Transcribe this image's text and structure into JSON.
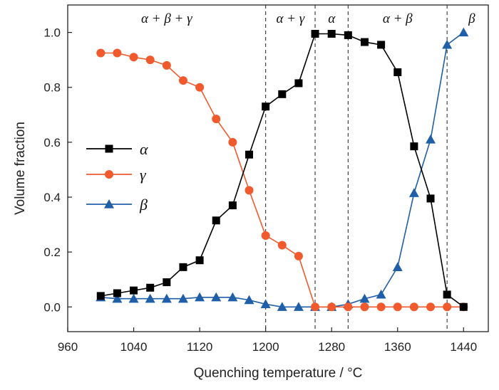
{
  "chart_data": {
    "type": "line",
    "title": "",
    "xlabel": "Quenching temperature / °C",
    "ylabel": "Volume fraction",
    "xlim": [
      960,
      1470
    ],
    "ylim": [
      -0.09,
      1.1
    ],
    "xticks": [
      960,
      1040,
      1120,
      1200,
      1280,
      1360,
      1440
    ],
    "yticks": [
      0.0,
      0.2,
      0.4,
      0.6,
      0.8,
      1.0
    ],
    "xtick_labels": [
      "960",
      "1040",
      "1120",
      "1200",
      "1280",
      "1360",
      "1440"
    ],
    "ytick_labels": [
      "0.0",
      "0.2",
      "0.4",
      "0.6",
      "0.8",
      "1.0"
    ],
    "grid": false,
    "legend_position": "center-left",
    "phase_boundaries": [
      1200,
      1260,
      1300,
      1420
    ],
    "phase_labels": [
      {
        "text": "α + β + γ",
        "x": 1080
      },
      {
        "text": "α + γ",
        "x": 1230
      },
      {
        "text": "α",
        "x": 1280
      },
      {
        "text": "α + β",
        "x": 1360
      },
      {
        "text": "β",
        "x": 1450
      }
    ],
    "x": [
      1000,
      1020,
      1040,
      1060,
      1080,
      1100,
      1120,
      1140,
      1160,
      1180,
      1200,
      1220,
      1240,
      1260,
      1280,
      1300,
      1320,
      1340,
      1360,
      1380,
      1400,
      1420,
      1440
    ],
    "series": [
      {
        "name": "α",
        "color": "#000000",
        "marker": "square",
        "values": [
          0.04,
          0.05,
          0.06,
          0.07,
          0.09,
          0.145,
          0.17,
          0.315,
          0.37,
          0.555,
          0.73,
          0.775,
          0.815,
          0.995,
          0.995,
          0.99,
          0.965,
          0.955,
          0.855,
          0.585,
          0.395,
          0.045,
          0.0
        ]
      },
      {
        "name": "γ",
        "color": "#f05a2c",
        "marker": "circle",
        "values": [
          0.925,
          0.925,
          0.91,
          0.9,
          0.88,
          0.825,
          0.8,
          0.685,
          0.6,
          0.425,
          0.26,
          0.225,
          0.185,
          0.0,
          0.0,
          0.0,
          0.0,
          0.0,
          0.0,
          0.0,
          0.0,
          0.0,
          0.0
        ]
      },
      {
        "name": "β",
        "color": "#1f5fa8",
        "marker": "triangle",
        "values": [
          0.035,
          0.03,
          0.03,
          0.03,
          0.03,
          0.03,
          0.035,
          0.035,
          0.035,
          0.025,
          0.01,
          0.0,
          0.0,
          0.0,
          0.0,
          0.01,
          0.03,
          0.045,
          0.145,
          0.415,
          0.61,
          0.955,
          1.0
        ]
      }
    ]
  }
}
